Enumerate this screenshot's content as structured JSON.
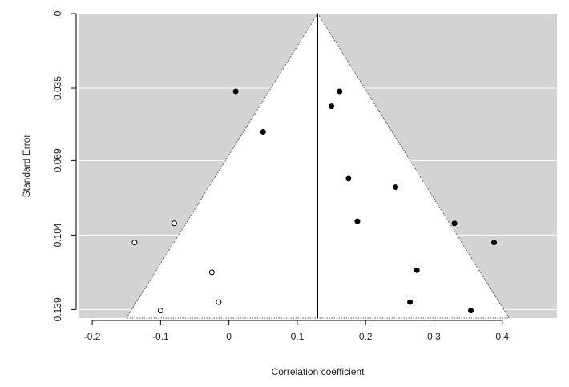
{
  "chart_data": {
    "type": "scatter",
    "title": "",
    "xlabel": "Correlation coefficient",
    "ylabel": "Standard Error",
    "xlim": [
      -0.22,
      0.48
    ],
    "ylim": [
      0.143,
      0
    ],
    "y_reversed": true,
    "x_ticks": [
      "-0.2",
      "-0.1",
      "0",
      "0.1",
      "0.2",
      "0.3",
      "0.4"
    ],
    "x_tick_values": [
      -0.2,
      -0.1,
      0,
      0.1,
      0.2,
      0.3,
      0.4
    ],
    "y_ticks": [
      "0",
      "0.035",
      "0.069",
      "0.104",
      "0.139"
    ],
    "y_tick_values": [
      0,
      0.035,
      0.069,
      0.104,
      0.139
    ],
    "grid": "horizontal",
    "funnel": {
      "center": 0.13,
      "bottom_left": -0.15,
      "bottom_right": 0.41,
      "bottom_se": 0.143
    },
    "series": [
      {
        "marker": "filled",
        "points": [
          {
            "x": 0.01,
            "y": 0.0365
          },
          {
            "x": 0.05,
            "y": 0.0555
          },
          {
            "x": 0.162,
            "y": 0.0365
          },
          {
            "x": 0.15,
            "y": 0.0435
          },
          {
            "x": 0.175,
            "y": 0.0775
          },
          {
            "x": 0.244,
            "y": 0.0815
          },
          {
            "x": 0.188,
            "y": 0.0975
          },
          {
            "x": 0.33,
            "y": 0.0985
          },
          {
            "x": 0.388,
            "y": 0.1075
          },
          {
            "x": 0.275,
            "y": 0.1205
          },
          {
            "x": 0.265,
            "y": 0.1355
          },
          {
            "x": 0.354,
            "y": 0.1395
          }
        ]
      },
      {
        "marker": "open",
        "points": [
          {
            "x": -0.08,
            "y": 0.0985
          },
          {
            "x": -0.138,
            "y": 0.1075
          },
          {
            "x": -0.025,
            "y": 0.1215
          },
          {
            "x": -0.015,
            "y": 0.1355
          },
          {
            "x": -0.1,
            "y": 0.1395
          }
        ]
      }
    ],
    "colors": {
      "shaded": "#d3d3d3",
      "funnel": "#ffffff",
      "filled_point": "#000000",
      "open_point": "#ffffff",
      "grid": "#ffffff",
      "axis": "#000000"
    }
  }
}
